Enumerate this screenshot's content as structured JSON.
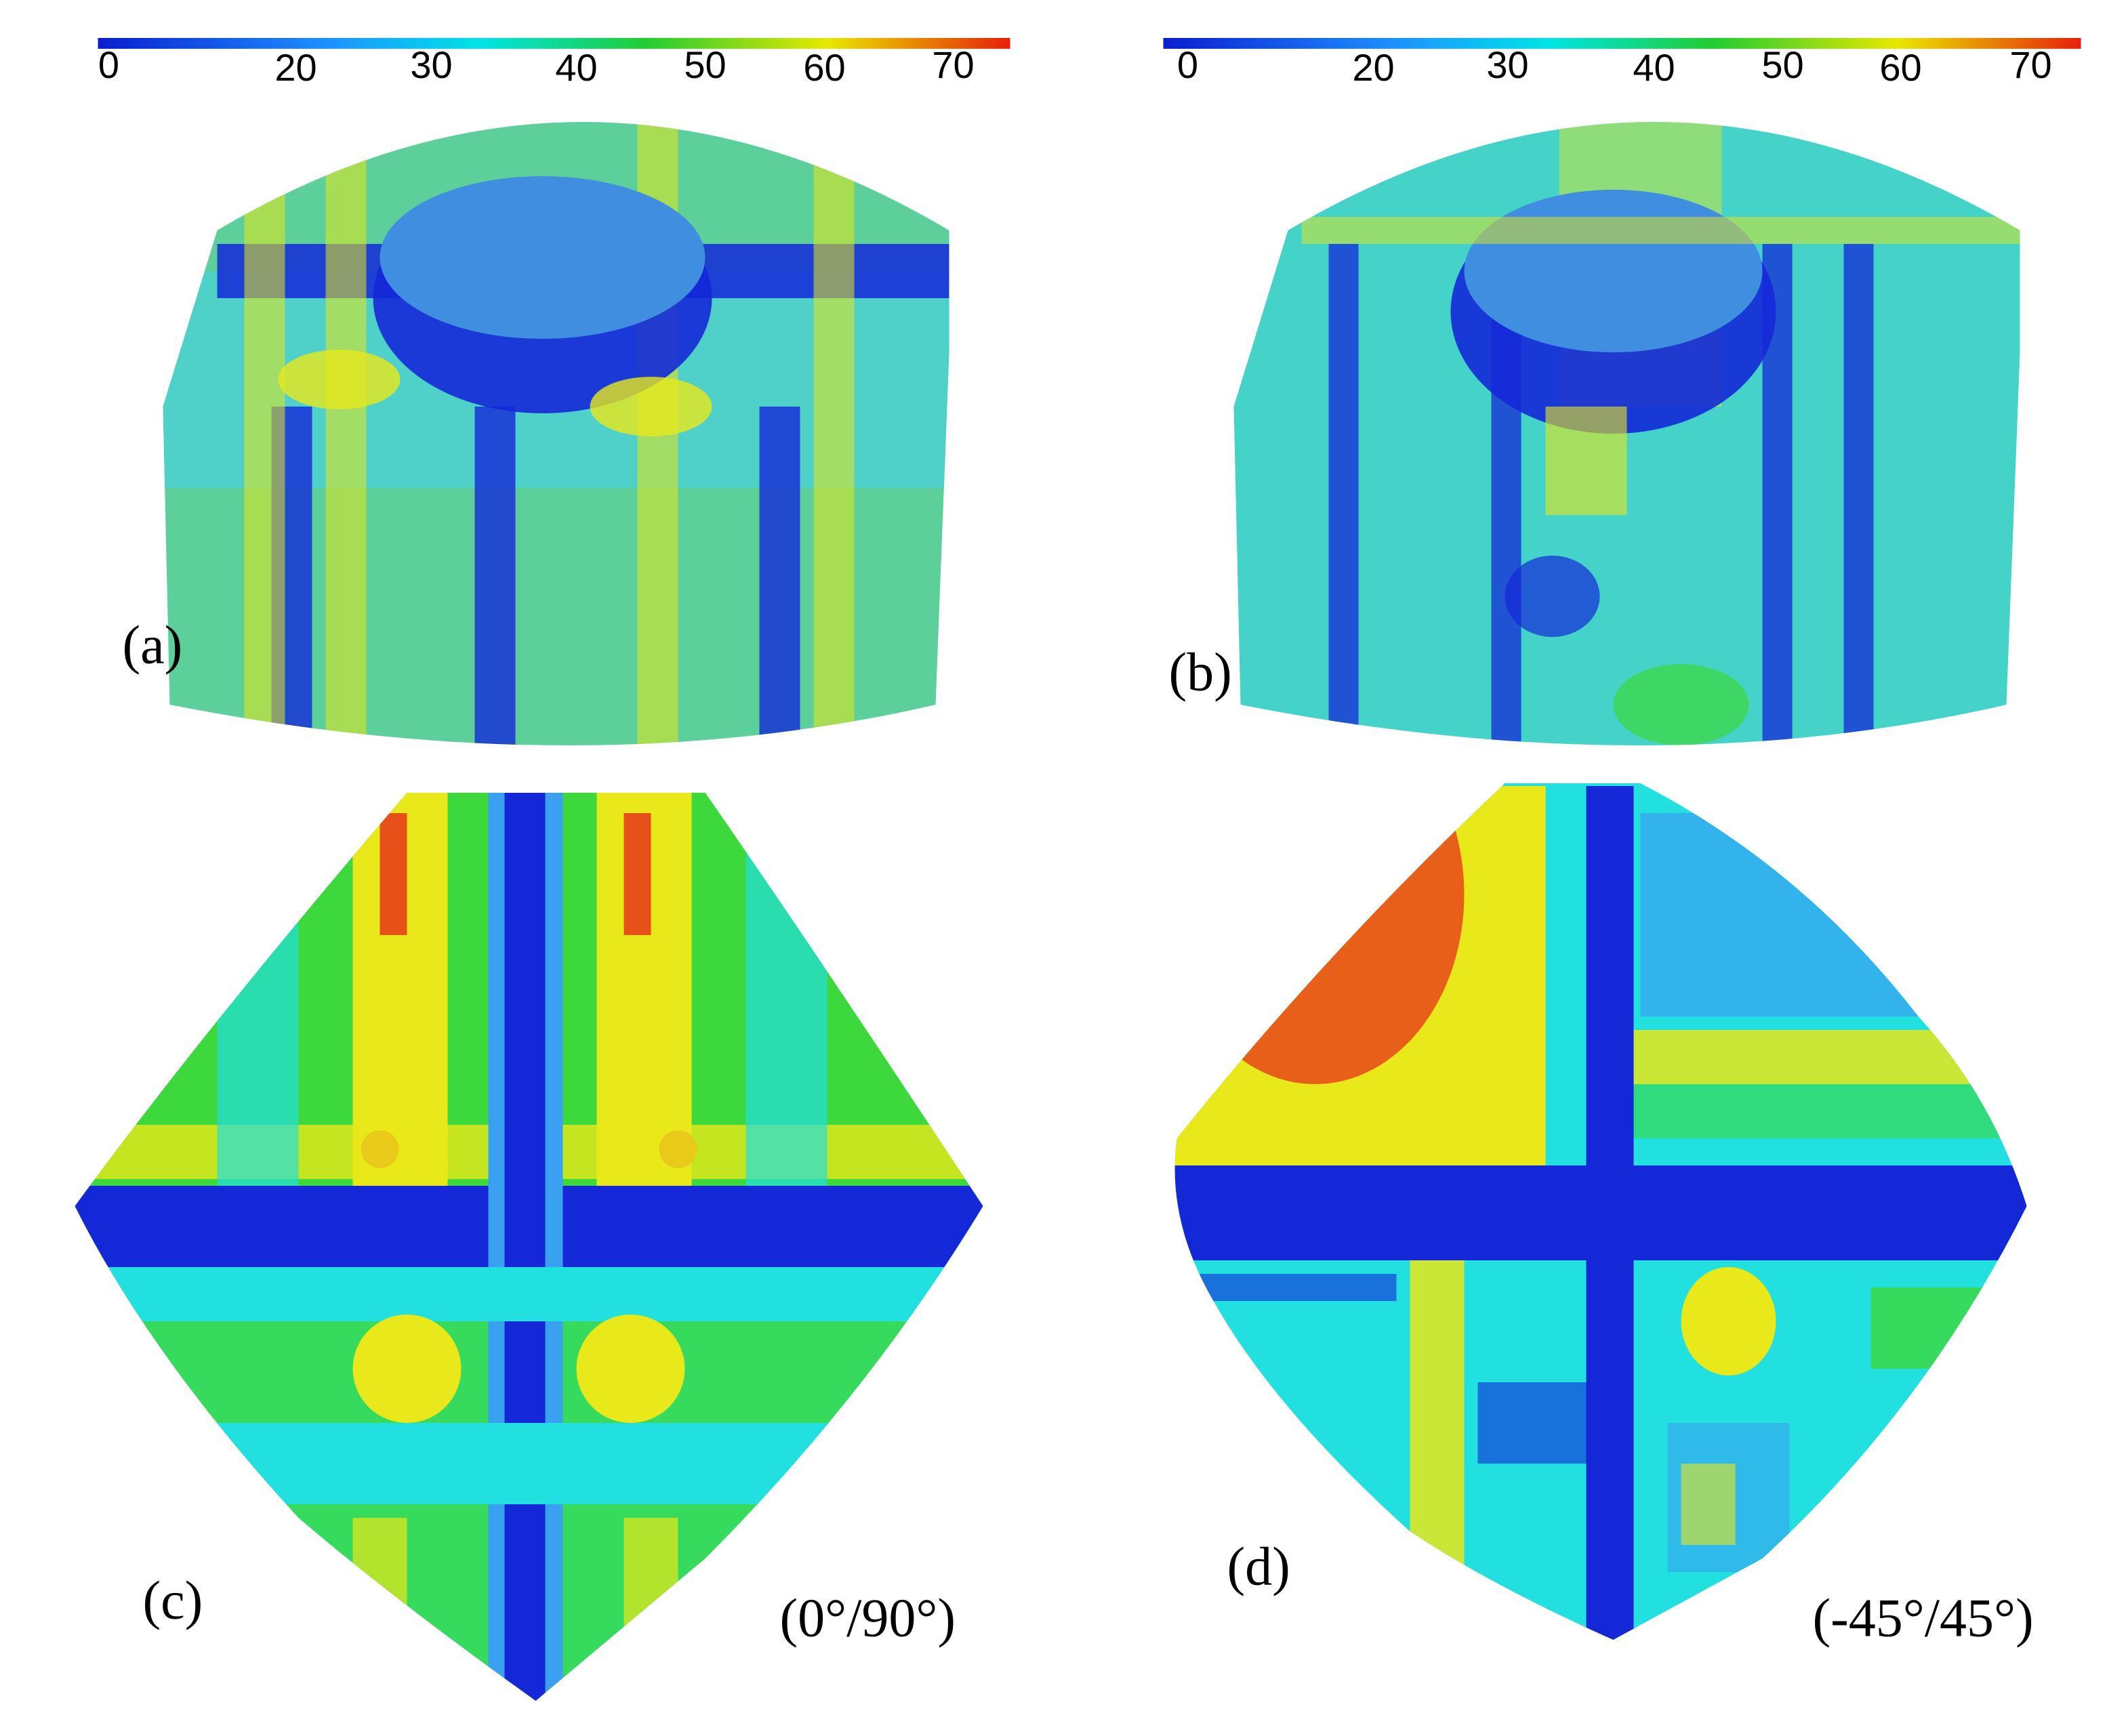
{
  "panels": [
    {
      "label": "(a)",
      "colorbar": {
        "ticks": [
          0,
          20,
          30,
          40,
          50,
          60,
          70
        ]
      }
    },
    {
      "label": "(b)",
      "colorbar": {
        "ticks": [
          0,
          20,
          30,
          40,
          50,
          60,
          70
        ]
      }
    },
    {
      "label": "(c)",
      "caption": "(0°/90°)"
    },
    {
      "label": "(d)",
      "caption": "(-45°/45°)"
    }
  ]
}
